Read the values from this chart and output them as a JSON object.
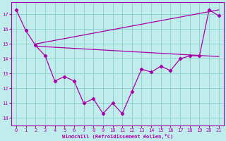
{
  "xlabel": "Windchill (Refroidissement éolien,°C)",
  "bg_color": "#c0ecec",
  "grid_color": "#90d4d4",
  "line_color": "#aa00aa",
  "xlim": [
    -0.5,
    21.5
  ],
  "ylim": [
    9.5,
    17.8
  ],
  "xticks": [
    0,
    1,
    2,
    3,
    4,
    5,
    6,
    7,
    8,
    9,
    10,
    11,
    12,
    13,
    14,
    15,
    16,
    17,
    18,
    19,
    20,
    21
  ],
  "yticks": [
    10,
    11,
    12,
    13,
    14,
    15,
    16,
    17
  ],
  "series1_x": [
    0,
    1,
    2,
    3,
    4,
    5,
    6,
    7,
    8,
    9,
    10,
    11,
    12,
    13,
    14,
    15,
    16,
    17,
    18,
    19,
    20,
    21
  ],
  "series1_y": [
    17.3,
    15.9,
    14.9,
    14.2,
    12.5,
    12.8,
    12.5,
    11.0,
    11.3,
    10.3,
    11.0,
    10.3,
    11.8,
    13.3,
    13.1,
    13.5,
    13.2,
    14.0,
    14.2,
    14.2,
    17.3,
    16.9
  ],
  "series2_x": [
    2,
    21
  ],
  "series2_y": [
    15.0,
    17.3
  ],
  "series3_x": [
    2,
    21
  ],
  "series3_y": [
    14.85,
    14.15
  ]
}
